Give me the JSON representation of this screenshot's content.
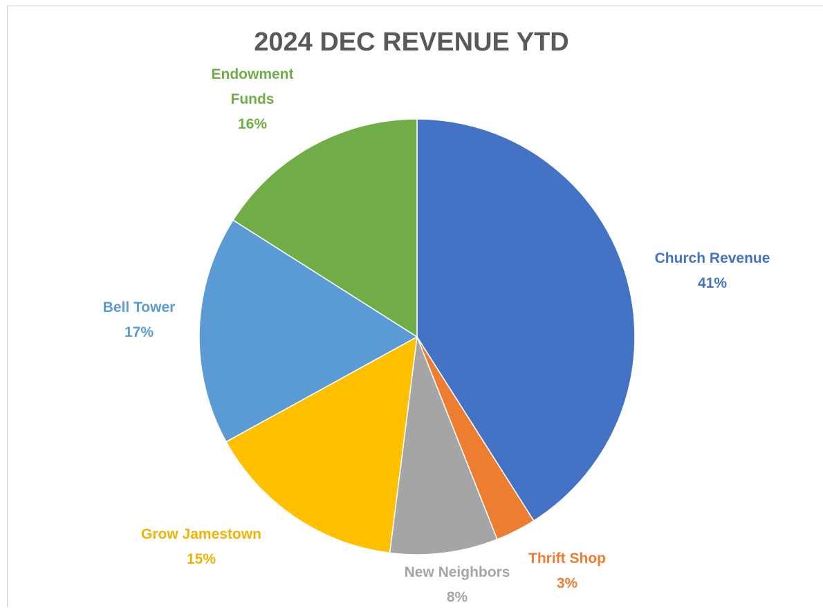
{
  "chart_data": {
    "type": "pie",
    "title": "2024 DEC REVENUE YTD",
    "categories": [
      "Church Revenue",
      "Thrift Shop",
      "New Neighbors",
      "Grow Jamestown",
      "Bell Tower",
      "Endowment Funds"
    ],
    "values": [
      41,
      3,
      8,
      15,
      17,
      16
    ],
    "value_labels": [
      "41%",
      "3%",
      "8%",
      "15%",
      "17%",
      "16%"
    ],
    "colors": [
      "#4472c4",
      "#ed7d31",
      "#a5a5a5",
      "#ffc000",
      "#5b9bd5",
      "#70ad47"
    ]
  }
}
